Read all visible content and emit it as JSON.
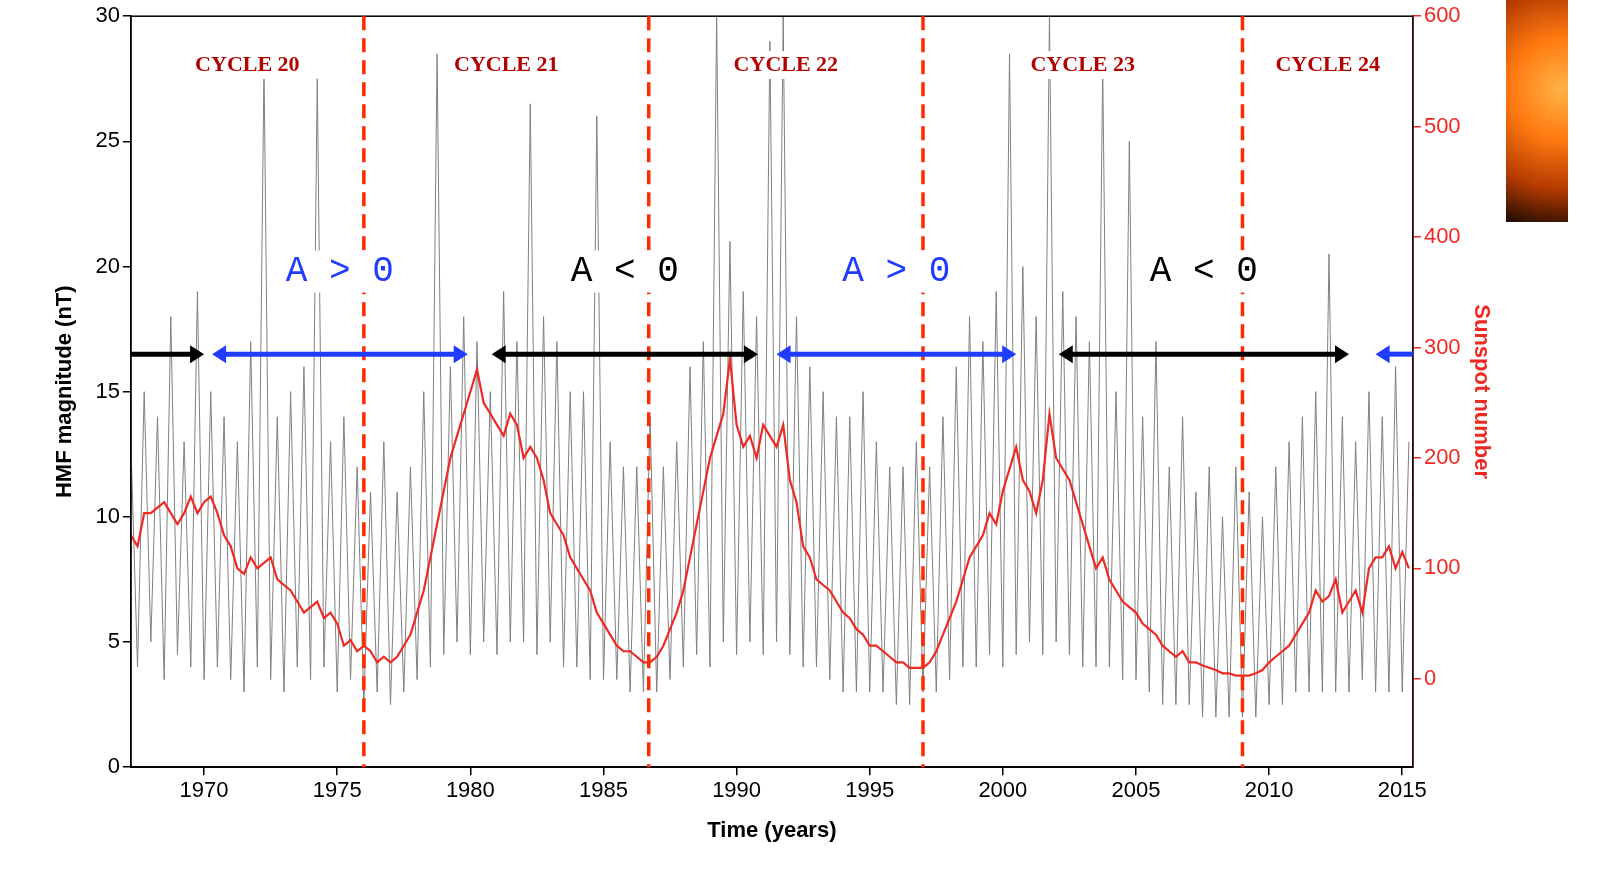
{
  "chart_data": {
    "type": "line",
    "xlabel": "Time (years)",
    "ylabel": "HMF magnitude (nT)",
    "y2label": "Sunspot number",
    "xlim": [
      1967.25,
      2015.4
    ],
    "xticks": [
      1970,
      1975,
      1980,
      1985,
      1990,
      1995,
      2000,
      2005,
      2010,
      2015
    ],
    "ylim": [
      0,
      30
    ],
    "yticks": [
      0,
      5,
      10,
      15,
      20,
      25,
      30
    ],
    "y2lim": [
      -80,
      600
    ],
    "y2ticks": [
      0,
      100,
      200,
      300,
      400,
      500,
      600
    ],
    "grid": false,
    "x": [
      1967.25,
      1967.5,
      1967.75,
      1968,
      1968.25,
      1968.5,
      1968.75,
      1969,
      1969.25,
      1969.5,
      1969.75,
      1970,
      1970.25,
      1970.5,
      1970.75,
      1971,
      1971.25,
      1971.5,
      1971.75,
      1972,
      1972.25,
      1972.5,
      1972.75,
      1973,
      1973.25,
      1973.5,
      1973.75,
      1974,
      1974.25,
      1974.5,
      1974.75,
      1975,
      1975.25,
      1975.5,
      1975.75,
      1976,
      1976.25,
      1976.5,
      1976.75,
      1977,
      1977.25,
      1977.5,
      1977.75,
      1978,
      1978.25,
      1978.5,
      1978.75,
      1979,
      1979.25,
      1979.5,
      1979.75,
      1980,
      1980.25,
      1980.5,
      1980.75,
      1981,
      1981.25,
      1981.5,
      1981.75,
      1982,
      1982.25,
      1982.5,
      1982.75,
      1983,
      1983.25,
      1983.5,
      1983.75,
      1984,
      1984.25,
      1984.5,
      1984.75,
      1985,
      1985.25,
      1985.5,
      1985.75,
      1986,
      1986.25,
      1986.5,
      1986.75,
      1987,
      1987.25,
      1987.5,
      1987.75,
      1988,
      1988.25,
      1988.5,
      1988.75,
      1989,
      1989.25,
      1989.5,
      1989.75,
      1990,
      1990.25,
      1990.5,
      1990.75,
      1991,
      1991.25,
      1991.5,
      1991.75,
      1992,
      1992.25,
      1992.5,
      1992.75,
      1993,
      1993.25,
      1993.5,
      1993.75,
      1994,
      1994.25,
      1994.5,
      1994.75,
      1995,
      1995.25,
      1995.5,
      1995.75,
      1996,
      1996.25,
      1996.5,
      1996.75,
      1997,
      1997.25,
      1997.5,
      1997.75,
      1998,
      1998.25,
      1998.5,
      1998.75,
      1999,
      1999.25,
      1999.5,
      1999.75,
      2000,
      2000.25,
      2000.5,
      2000.75,
      2001,
      2001.25,
      2001.5,
      2001.75,
      2002,
      2002.25,
      2002.5,
      2002.75,
      2003,
      2003.25,
      2003.5,
      2003.75,
      2004,
      2004.25,
      2004.5,
      2004.75,
      2005,
      2005.25,
      2005.5,
      2005.75,
      2006,
      2006.25,
      2006.5,
      2006.75,
      2007,
      2007.25,
      2007.5,
      2007.75,
      2008,
      2008.25,
      2008.5,
      2008.75,
      2009,
      2009.25,
      2009.5,
      2009.75,
      2010,
      2010.25,
      2010.5,
      2010.75,
      2011,
      2011.25,
      2011.5,
      2011.75,
      2012,
      2012.25,
      2012.5,
      2012.75,
      2013,
      2013.25,
      2013.5,
      2013.75,
      2014,
      2014.25,
      2014.5,
      2014.75,
      2015,
      2015.25
    ],
    "series": [
      {
        "name": "HMF magnitude (nT)",
        "color": "#808080",
        "values": [
          13,
          4,
          15,
          5,
          14,
          3.5,
          18,
          4.5,
          13,
          4,
          19,
          3.5,
          15,
          4,
          14,
          3.5,
          13,
          3,
          17,
          4,
          28,
          3.5,
          14,
          3,
          15,
          4,
          16,
          3.5,
          27.5,
          4,
          13,
          3,
          14,
          3.5,
          12,
          2.5,
          11,
          3,
          13,
          2.5,
          11,
          3,
          12,
          3.5,
          15,
          4,
          28.5,
          4.5,
          16,
          5,
          18,
          4.5,
          17,
          5,
          15,
          4.5,
          19,
          5,
          17,
          5,
          26.5,
          4.5,
          18,
          5,
          17,
          4,
          15,
          4,
          15,
          3.5,
          26,
          3.5,
          13,
          3.5,
          12,
          3,
          12,
          3,
          14,
          3,
          12,
          3.5,
          13,
          4,
          16,
          4.5,
          17,
          4,
          30,
          5,
          21,
          4.5,
          19,
          5,
          18,
          4.5,
          29,
          5,
          30,
          4.5,
          18,
          4,
          16,
          4,
          15,
          3.5,
          14,
          3,
          14,
          3,
          15,
          3,
          13,
          3,
          12,
          2.5,
          12,
          2.5,
          13,
          3,
          12,
          3,
          14,
          3.5,
          16,
          4,
          18,
          4,
          17,
          4.5,
          19,
          4,
          28.5,
          4.5,
          20,
          5,
          18,
          4.5,
          30,
          5,
          19,
          4.5,
          18,
          4,
          17,
          4,
          28,
          4,
          15,
          3.5,
          25,
          3.5,
          14,
          3,
          17,
          2.5,
          12,
          2.5,
          14,
          2.5,
          11,
          2,
          12,
          2,
          10,
          2,
          12,
          2,
          11,
          2,
          10,
          2.5,
          12,
          2.5,
          13,
          3,
          14,
          3,
          15,
          3,
          20.5,
          3,
          14,
          3,
          13,
          3.5,
          15,
          3,
          14,
          3,
          16,
          3,
          13
        ]
      },
      {
        "name": "Sunspot number",
        "color": "#ee2a24",
        "axis": "y2",
        "values": [
          130,
          120,
          150,
          150,
          155,
          160,
          150,
          140,
          150,
          165,
          150,
          160,
          165,
          150,
          130,
          120,
          100,
          95,
          110,
          100,
          105,
          110,
          90,
          85,
          80,
          70,
          60,
          65,
          70,
          55,
          60,
          50,
          30,
          35,
          25,
          30,
          25,
          15,
          20,
          15,
          20,
          30,
          40,
          60,
          80,
          110,
          140,
          170,
          200,
          220,
          240,
          260,
          280,
          250,
          240,
          230,
          220,
          240,
          230,
          200,
          210,
          200,
          180,
          150,
          140,
          130,
          110,
          100,
          90,
          80,
          60,
          50,
          40,
          30,
          25,
          25,
          20,
          15,
          15,
          20,
          30,
          45,
          60,
          80,
          110,
          140,
          170,
          200,
          220,
          240,
          290,
          230,
          210,
          220,
          200,
          230,
          220,
          210,
          230,
          180,
          160,
          120,
          110,
          90,
          85,
          80,
          70,
          60,
          55,
          45,
          40,
          30,
          30,
          25,
          20,
          15,
          15,
          10,
          10,
          10,
          15,
          25,
          40,
          55,
          70,
          90,
          110,
          120,
          130,
          150,
          140,
          170,
          190,
          210,
          180,
          170,
          150,
          180,
          240,
          200,
          190,
          180,
          160,
          140,
          120,
          100,
          110,
          90,
          80,
          70,
          65,
          60,
          50,
          45,
          40,
          30,
          25,
          20,
          25,
          15,
          15,
          12,
          10,
          8,
          5,
          5,
          3,
          3,
          3,
          5,
          8,
          15,
          20,
          25,
          30,
          40,
          50,
          60,
          80,
          70,
          75,
          90,
          60,
          70,
          80,
          60,
          100,
          110,
          110,
          120,
          100,
          115,
          100
        ]
      }
    ],
    "cycles": [
      "CYCLE 20",
      "CYCLE 21",
      "CYCLE 22",
      "CYCLE 23",
      "CYCLE 24"
    ],
    "cycle_boundaries": [
      1976,
      1986.7,
      1997,
      2009
    ],
    "polarity_periods": [
      {
        "start": 1967.25,
        "end": 1970,
        "color": "#000000"
      },
      {
        "label": "A > 0",
        "start": 1970.3,
        "end": 1979.9,
        "color": "#1f3cff"
      },
      {
        "label": "A < 0",
        "start": 1980.8,
        "end": 1990.8,
        "color": "#000000"
      },
      {
        "label": "A > 0",
        "start": 1991.5,
        "end": 2000.5,
        "color": "#1f3cff"
      },
      {
        "label": "A < 0",
        "start": 2002.1,
        "end": 2013.0,
        "color": "#000000"
      },
      {
        "start": 2014.0,
        "end": 2015.4,
        "color": "#1f3cff"
      }
    ]
  }
}
